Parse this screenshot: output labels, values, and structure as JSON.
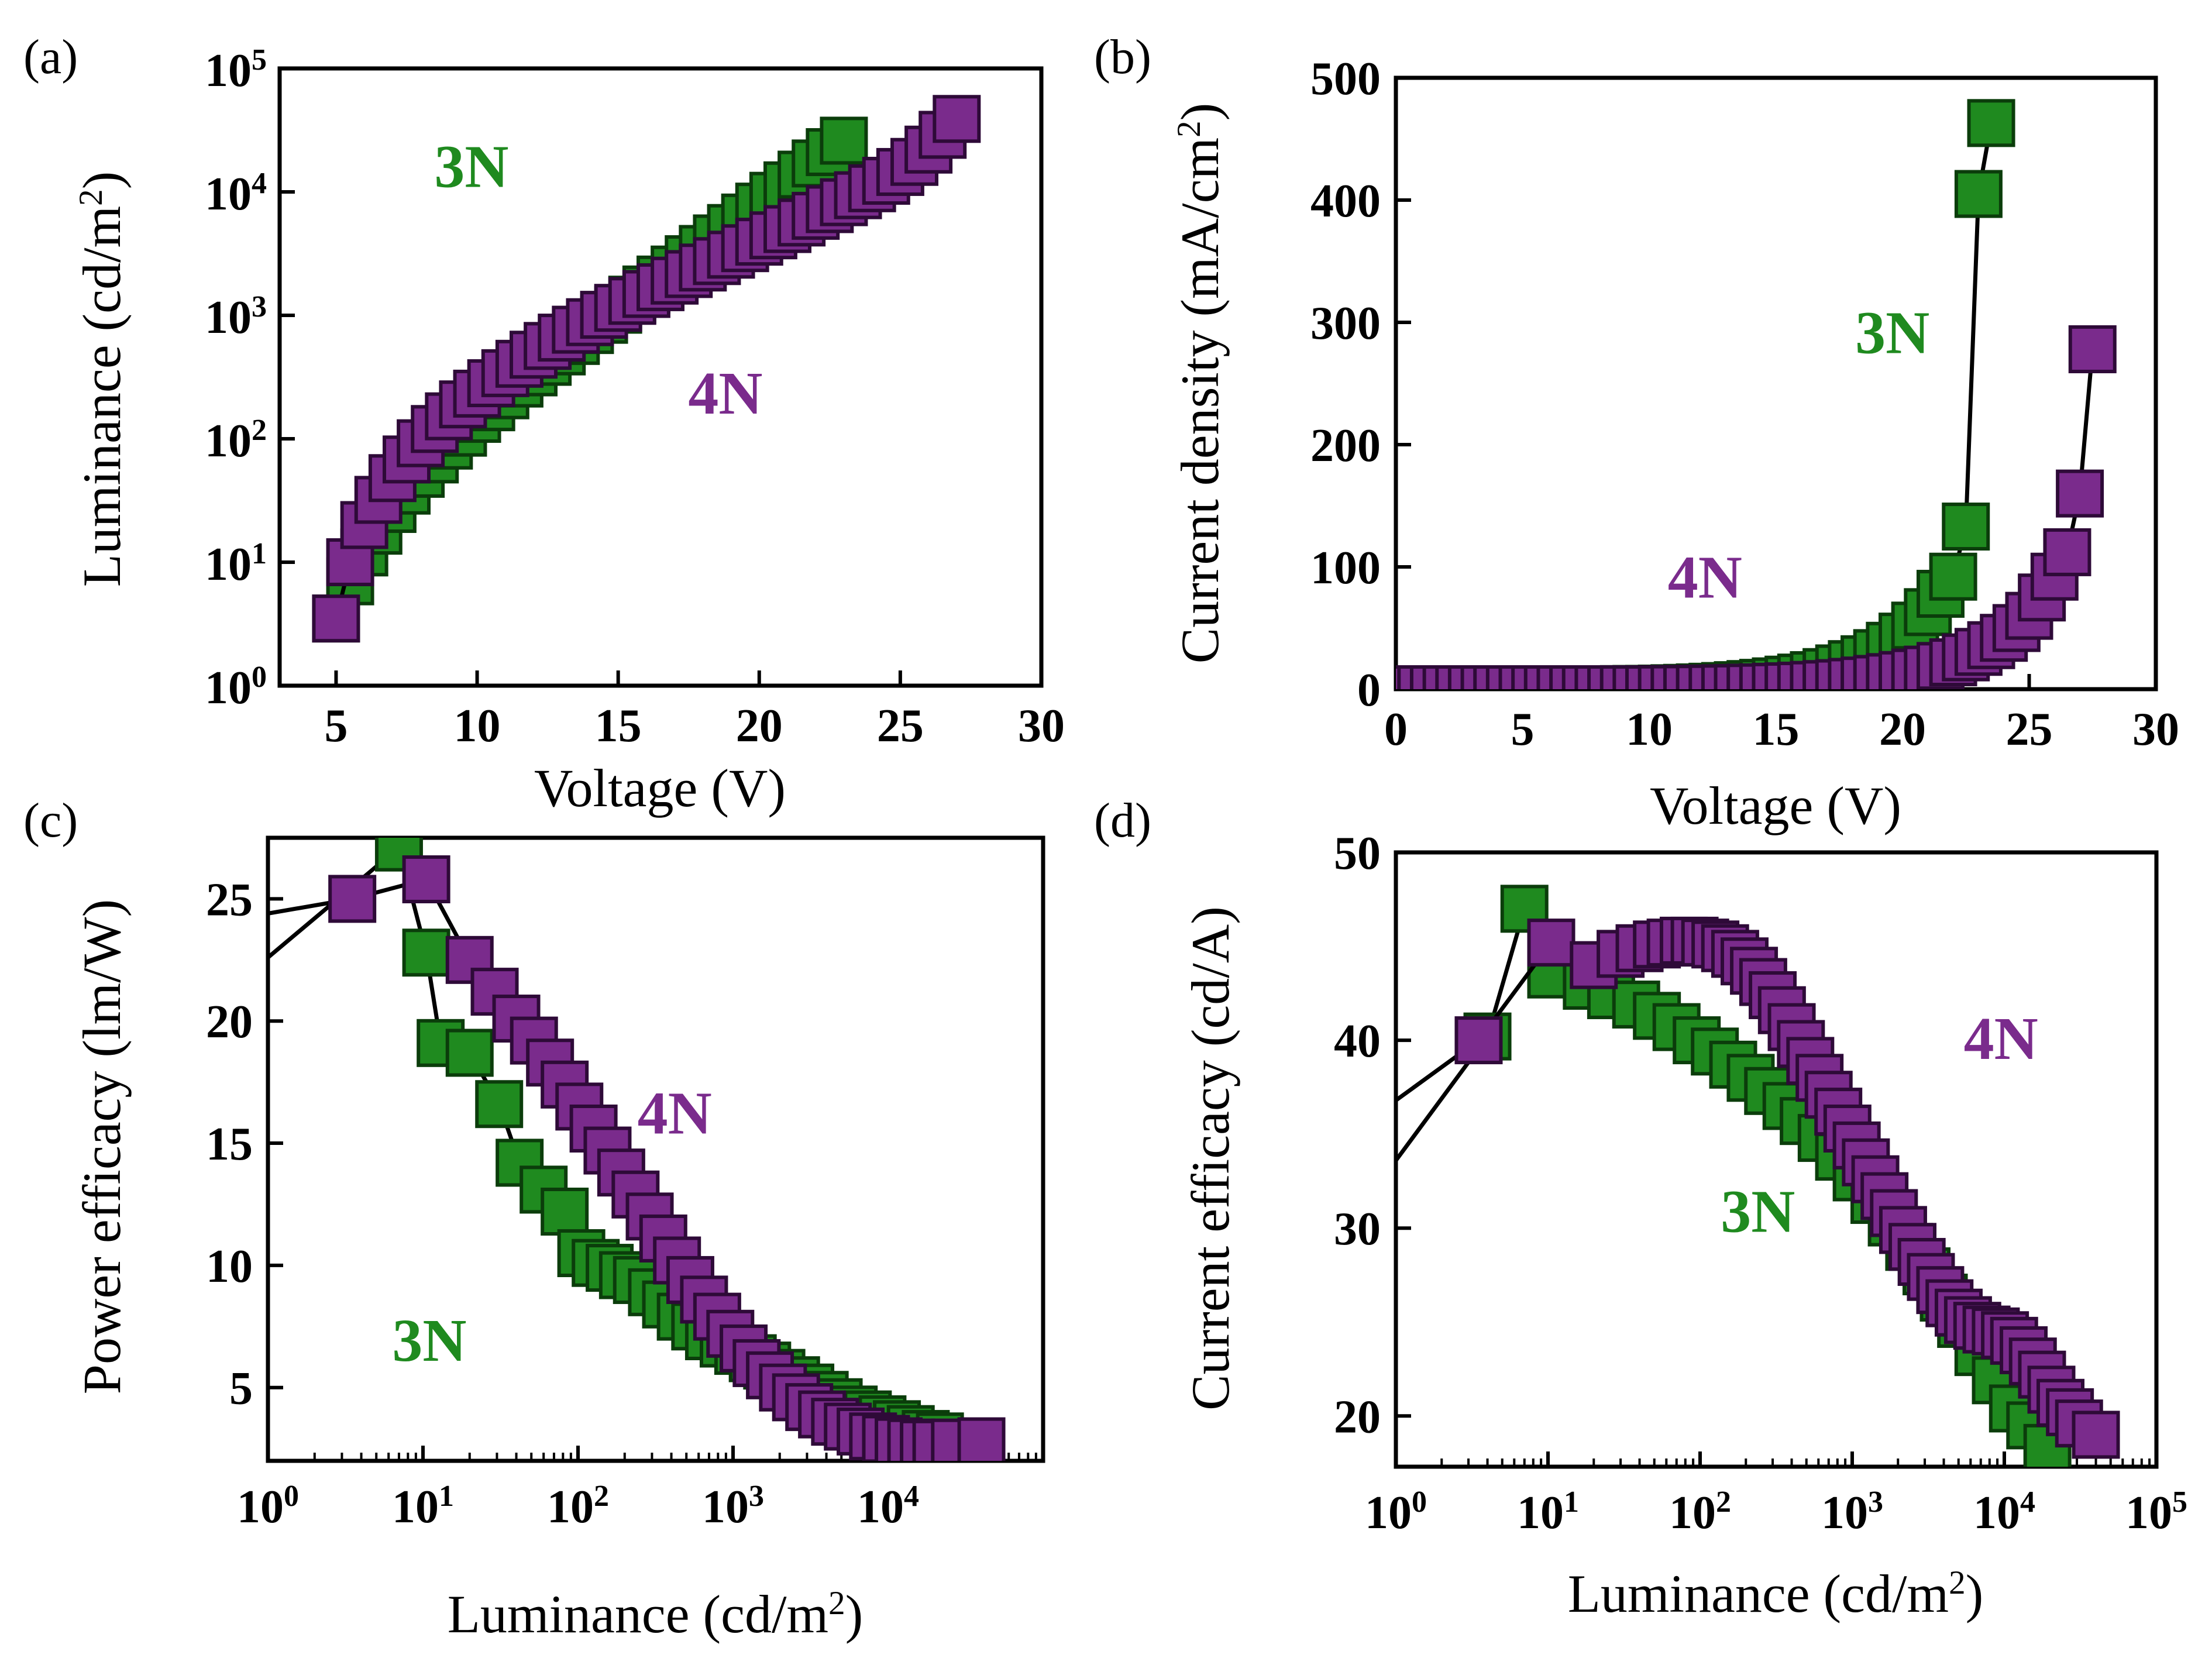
{
  "colors": {
    "3N": "#1f8a1f",
    "3N_edge": "#0b3d0b",
    "4N": "#7a2b8c",
    "4N_edge": "#2e0a38"
  },
  "chart_data": [
    {
      "panel": "(a)",
      "type": "scatter",
      "xlabel": "Voltage (V)",
      "ylabel": "Luminance (cd/m2)",
      "ylabel_parts": [
        "Luminance (cd/m",
        "2",
        ")"
      ],
      "xscale": "linear",
      "yscale": "log",
      "xlim": [
        3,
        30
      ],
      "ylim": [
        1,
        100000
      ],
      "xticks": [
        5,
        10,
        15,
        20,
        25,
        30
      ],
      "xtick_labels": [
        "5",
        "10",
        "15",
        "20",
        "25",
        "30"
      ],
      "yticks": [
        1,
        10,
        100,
        1000,
        10000,
        100000
      ],
      "ytick_labels": [
        {
          "base": "10",
          "exp": "0"
        },
        {
          "base": "10",
          "exp": "1"
        },
        {
          "base": "10",
          "exp": "2"
        },
        {
          "base": "10",
          "exp": "3"
        },
        {
          "base": "10",
          "exp": "4"
        },
        {
          "base": "10",
          "exp": "5"
        }
      ],
      "series": [
        {
          "name": "3N",
          "color_key": "3N",
          "x": [
            5.0,
            5.5,
            6.0,
            6.5,
            7.0,
            7.5,
            8.0,
            8.5,
            9.0,
            9.5,
            10.0,
            10.5,
            11.0,
            11.5,
            12.0,
            12.5,
            13.0,
            13.5,
            14.0,
            14.5,
            15.0,
            15.5,
            16.0,
            16.5,
            17.0,
            17.5,
            18.0,
            18.5,
            19.0,
            19.5,
            20.0,
            20.5,
            21.0,
            21.5,
            22.0,
            22.5,
            23.0
          ],
          "y": [
            3.5,
            7,
            12,
            18,
            27,
            38,
            52,
            68,
            88,
            112,
            145,
            180,
            225,
            280,
            345,
            420,
            510,
            620,
            760,
            920,
            1110,
            1340,
            1620,
            1950,
            2350,
            2850,
            3450,
            4200,
            5100,
            6200,
            7600,
            9300,
            11300,
            13800,
            17000,
            21000,
            26000
          ]
        },
        {
          "name": "4N",
          "color_key": "4N",
          "x": [
            5.0,
            5.5,
            6.0,
            6.5,
            7.0,
            7.5,
            8.0,
            8.5,
            9.0,
            9.5,
            10.0,
            10.5,
            11.0,
            11.5,
            12.0,
            12.5,
            13.0,
            13.5,
            14.0,
            14.5,
            15.0,
            15.5,
            16.0,
            16.5,
            17.0,
            17.5,
            18.0,
            18.5,
            19.0,
            19.5,
            20.0,
            20.5,
            21.0,
            21.5,
            22.0,
            22.5,
            23.0,
            23.5,
            24.0,
            24.5,
            25.0,
            25.5,
            26.0,
            26.5,
            27.0
          ],
          "y": [
            3.5,
            10,
            20,
            32,
            48,
            68,
            92,
            120,
            152,
            190,
            232,
            282,
            340,
            405,
            480,
            565,
            660,
            765,
            880,
            1010,
            1150,
            1310,
            1490,
            1690,
            1910,
            2160,
            2440,
            2750,
            3100,
            3500,
            3950,
            4450,
            5000,
            5650,
            6400,
            7250,
            8250,
            9400,
            10700,
            12300,
            14500,
            17500,
            22000,
            29000,
            39000
          ]
        }
      ],
      "annotations": [
        {
          "text": "3N",
          "color_key": "3N",
          "x": 9.8,
          "y": 11000
        },
        {
          "text": "4N",
          "color_key": "4N",
          "x": 18.8,
          "y": 160
        }
      ]
    },
    {
      "panel": "(b)",
      "type": "line",
      "xlabel": "Voltage (V)",
      "ylabel": "Current density (mA/cm2)",
      "ylabel_parts": [
        "Current density (mA/cm",
        "2",
        ")"
      ],
      "xscale": "linear",
      "yscale": "linear",
      "xlim": [
        0,
        30
      ],
      "ylim": [
        0,
        500
      ],
      "xticks": [
        0,
        5,
        10,
        15,
        20,
        25,
        30
      ],
      "xtick_labels": [
        "0",
        "5",
        "10",
        "15",
        "20",
        "25",
        "30"
      ],
      "yticks": [
        0,
        100,
        200,
        300,
        400,
        500
      ],
      "ytick_labels": [
        "0",
        "100",
        "200",
        "300",
        "400",
        "500"
      ],
      "series": [
        {
          "name": "3N",
          "color_key": "3N",
          "x": [
            0,
            0.5,
            1,
            1.5,
            2,
            2.5,
            3,
            3.5,
            4,
            4.5,
            5,
            5.5,
            6,
            6.5,
            7,
            7.5,
            8,
            8.5,
            9,
            9.5,
            10,
            10.5,
            11,
            11.5,
            12,
            12.5,
            13,
            13.5,
            14,
            14.5,
            15,
            15.5,
            16,
            16.5,
            17,
            17.5,
            18,
            18.5,
            19,
            19.5,
            20,
            20.5,
            21,
            21.5,
            22,
            22.5,
            23,
            23.5
          ],
          "y": [
            0,
            0,
            0,
            0,
            0,
            0,
            0,
            0,
            0,
            0,
            0,
            0,
            0,
            0,
            0,
            0,
            0,
            0,
            0.1,
            0.2,
            0.3,
            0.5,
            0.8,
            1.1,
            1.5,
            2.0,
            2.6,
            3.3,
            4.2,
            5.2,
            6.4,
            7.8,
            9.5,
            11.5,
            14,
            17,
            20.5,
            24.5,
            29.5,
            35.5,
            43,
            52,
            63,
            78,
            92,
            133,
            405,
            463
          ]
        },
        {
          "name": "4N",
          "color_key": "4N",
          "x": [
            0,
            0.5,
            1,
            1.5,
            2,
            2.5,
            3,
            3.5,
            4,
            4.5,
            5,
            5.5,
            6,
            6.5,
            7,
            7.5,
            8,
            8.5,
            9,
            9.5,
            10,
            10.5,
            11,
            11.5,
            12,
            12.5,
            13,
            13.5,
            14,
            14.5,
            15,
            15.5,
            16,
            16.5,
            17,
            17.5,
            18,
            18.5,
            19,
            19.5,
            20,
            20.5,
            21,
            21.5,
            22,
            22.5,
            23,
            23.5,
            24,
            24.5,
            25,
            25.5,
            26,
            26.5,
            27,
            27.5
          ],
          "y": [
            0,
            0,
            0,
            0,
            0,
            0,
            0,
            0,
            0,
            0,
            0,
            0,
            0,
            0,
            0,
            0,
            0,
            0,
            0,
            0,
            0,
            0.1,
            0.2,
            0.3,
            0.4,
            0.6,
            0.8,
            1.0,
            1.3,
            1.6,
            2.0,
            2.4,
            2.9,
            3.5,
            4.2,
            5.0,
            6.0,
            7.1,
            8.4,
            9.9,
            11.6,
            13.6,
            16,
            19,
            22,
            26,
            30.5,
            36,
            42,
            50,
            60,
            75,
            92,
            112,
            160,
            278
          ]
        }
      ],
      "annotations": [
        {
          "text": "3N",
          "color_key": "3N",
          "x": 19.6,
          "y": 275
        },
        {
          "text": "4N",
          "color_key": "4N",
          "x": 12.2,
          "y": 75
        }
      ]
    },
    {
      "panel": "(c)",
      "type": "line",
      "xlabel": "Luminance (cd/m2)",
      "xlabel_parts": [
        "Luminance (cd/m",
        "2",
        ")"
      ],
      "ylabel": "Power efficacy (lm/W)",
      "xscale": "log",
      "yscale": "linear",
      "xlim": [
        1,
        100000
      ],
      "ylim": [
        2,
        27.5
      ],
      "xticks": [
        1,
        10,
        100,
        1000,
        10000
      ],
      "xtick_labels": [
        {
          "base": "10",
          "exp": "0"
        },
        {
          "base": "10",
          "exp": "1"
        },
        {
          "base": "10",
          "exp": "2"
        },
        {
          "base": "10",
          "exp": "3"
        },
        {
          "base": "10",
          "exp": "4"
        }
      ],
      "yticks": [
        5,
        10,
        15,
        20,
        25
      ],
      "ytick_labels": [
        "5",
        "10",
        "15",
        "20",
        "25"
      ],
      "series": [
        {
          "name": "3N",
          "color_key": "3N",
          "line_start": {
            "x": 1,
            "y": 22.6
          },
          "x": [
            7,
            10.5,
            13,
            20,
            31,
            42,
            60,
            82,
            105,
            130,
            160,
            195,
            240,
            300,
            370,
            460,
            570,
            700,
            870,
            1080,
            1340,
            1660,
            2050,
            2550,
            3150,
            3900,
            4800,
            6000,
            7400,
            9200,
            11400,
            14000,
            17500,
            21600
          ],
          "y": [
            27.1,
            22.8,
            19.1,
            18.7,
            16.6,
            14.2,
            13.1,
            12.2,
            10.5,
            10.1,
            9.9,
            9.6,
            9.4,
            8.9,
            8.4,
            7.9,
            7.5,
            7.1,
            6.8,
            6.5,
            6.2,
            5.9,
            5.6,
            5.3,
            5.0,
            4.7,
            4.4,
            4.1,
            3.9,
            3.7,
            3.5,
            3.3,
            3.1,
            3.0
          ]
        },
        {
          "name": "4N",
          "color_key": "4N",
          "line_start": {
            "x": 1,
            "y": 24.4
          },
          "x": [
            3.5,
            10.5,
            20,
            29,
            40,
            52,
            66,
            82,
            102,
            126,
            155,
            190,
            235,
            290,
            355,
            435,
            530,
            650,
            790,
            960,
            1170,
            1420,
            1730,
            2100,
            2550,
            3100,
            3750,
            4550,
            5500,
            6650,
            8000,
            9700,
            11700,
            14100,
            17000,
            20500,
            27000,
            40000
          ],
          "y": [
            25.0,
            25.8,
            22.5,
            21.2,
            20.1,
            19.2,
            18.3,
            17.4,
            16.5,
            15.6,
            14.7,
            13.8,
            12.9,
            12.0,
            11.1,
            10.2,
            9.4,
            8.6,
            7.9,
            7.2,
            6.6,
            6.0,
            5.5,
            5.0,
            4.6,
            4.2,
            3.9,
            3.6,
            3.4,
            3.2,
            3.0,
            2.9,
            2.8,
            2.75,
            2.7,
            2.7,
            2.75,
            2.8
          ]
        }
      ],
      "annotations": [
        {
          "text": "4N",
          "color_key": "4N",
          "x": 420,
          "y": 15.4
        },
        {
          "text": "3N",
          "color_key": "3N",
          "x": 11,
          "y": 6.1
        }
      ]
    },
    {
      "panel": "(d)",
      "type": "line",
      "xlabel": "Luminance (cd/m2)",
      "xlabel_parts": [
        "Luminance (cd/m",
        "2",
        ")"
      ],
      "ylabel": "Current efficacy (cd/A)",
      "xscale": "log",
      "yscale": "linear",
      "xlim": [
        1,
        100000
      ],
      "ylim": [
        17.3,
        50
      ],
      "xticks": [
        1,
        10,
        100,
        1000,
        10000,
        100000
      ],
      "xtick_labels": [
        {
          "base": "10",
          "exp": "0"
        },
        {
          "base": "10",
          "exp": "1"
        },
        {
          "base": "10",
          "exp": "2"
        },
        {
          "base": "10",
          "exp": "3"
        },
        {
          "base": "10",
          "exp": "4"
        },
        {
          "base": "10",
          "exp": "5"
        }
      ],
      "yticks": [
        20,
        30,
        40,
        50
      ],
      "ytick_labels": [
        "20",
        "30",
        "40",
        "50"
      ],
      "series": [
        {
          "name": "3N",
          "color_key": "3N",
          "line_start": {
            "x": 1,
            "y": 33.6
          },
          "x": [
            4,
            7,
            10.5,
            18,
            26,
            38,
            52,
            70,
            95,
            125,
            165,
            215,
            280,
            370,
            480,
            630,
            820,
            1070,
            1400,
            1820,
            2370,
            3080,
            4000,
            5200,
            6760,
            8800,
            11400,
            14800,
            19200
          ],
          "y": [
            40.2,
            47.0,
            43.5,
            42.9,
            42.4,
            41.9,
            41.3,
            40.7,
            40.0,
            39.4,
            38.7,
            38.0,
            37.3,
            36.5,
            35.7,
            34.8,
            33.8,
            32.7,
            31.5,
            30.3,
            29.0,
            27.7,
            26.3,
            24.9,
            23.4,
            21.9,
            20.4,
            19.5,
            18.3
          ]
        },
        {
          "name": "4N",
          "color_key": "4N",
          "line_start": {
            "x": 1,
            "y": 36.8
          },
          "x": [
            3.5,
            10.5,
            20,
            30,
            40,
            52,
            64,
            78,
            92,
            108,
            126,
            146,
            170,
            196,
            226,
            260,
            300,
            345,
            400,
            460,
            530,
            610,
            700,
            810,
            930,
            1070,
            1230,
            1420,
            1630,
            1880,
            2160,
            2490,
            2860,
            3290,
            3790,
            4360,
            5010,
            5770,
            6640,
            7640,
            8790,
            10100,
            11600,
            13400,
            15400,
            17700,
            20400,
            23400,
            27000,
            31000,
            40000
          ],
          "y": [
            40.0,
            45.2,
            44.0,
            44.6,
            44.9,
            45.1,
            45.2,
            45.3,
            45.3,
            45.2,
            45.1,
            44.9,
            44.6,
            44.2,
            43.7,
            43.1,
            42.4,
            41.6,
            40.7,
            39.8,
            38.9,
            38.0,
            37.1,
            36.2,
            35.3,
            34.4,
            33.5,
            32.6,
            31.7,
            30.8,
            29.9,
            29.0,
            28.2,
            27.4,
            26.7,
            26.0,
            25.5,
            25.1,
            24.8,
            24.6,
            24.5,
            24.3,
            24.0,
            23.5,
            22.9,
            22.2,
            21.4,
            20.7,
            20.2,
            19.6,
            19.0
          ]
        }
      ],
      "annotations": [
        {
          "text": "4N",
          "color_key": "4N",
          "x": 9500,
          "y": 39.0
        },
        {
          "text": "3N",
          "color_key": "3N",
          "x": 240,
          "y": 29.8
        }
      ]
    }
  ]
}
